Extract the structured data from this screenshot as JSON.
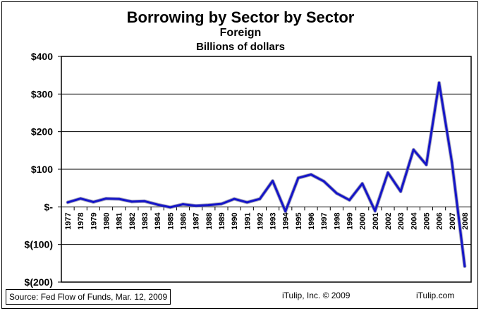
{
  "chart_data": {
    "type": "line",
    "title": "Borrowing by Sector by Sector",
    "subtitle": "Foreign",
    "units_label": "Billions of dollars",
    "xlabel": "",
    "ylabel": "",
    "ylim": [
      -200,
      400
    ],
    "yticks": [
      400,
      300,
      200,
      100,
      0,
      -100,
      -200
    ],
    "ytick_labels": [
      "$400",
      "$300",
      "$200",
      "$100",
      "$-",
      "$(100)",
      "$(200)"
    ],
    "x": [
      "1977",
      "1978",
      "1979",
      "1980",
      "1981",
      "1982",
      "1983",
      "1984",
      "1985",
      "1986",
      "1987",
      "1988",
      "1989",
      "1990",
      "1991",
      "1992",
      "1993",
      "1994",
      "1995",
      "1996",
      "1997",
      "1998",
      "1999",
      "2000",
      "2001",
      "2002",
      "2003",
      "2004",
      "2005",
      "2006",
      "2007",
      "2008"
    ],
    "series": [
      {
        "color": "#1515c8",
        "values": [
          12,
          22,
          13,
          22,
          21,
          14,
          15,
          6,
          -1,
          7,
          3,
          5,
          8,
          21,
          12,
          21,
          69,
          -12,
          77,
          86,
          68,
          36,
          18,
          62,
          -11,
          91,
          41,
          152,
          112,
          330,
          118,
          -158
        ]
      }
    ],
    "grid": true,
    "legend": "none"
  },
  "footer": {
    "source": "Source: Fed Flow of Funds, Mar. 12, 2009",
    "credit": "iTulip, Inc. © 2009",
    "site": "iTulip.com"
  }
}
